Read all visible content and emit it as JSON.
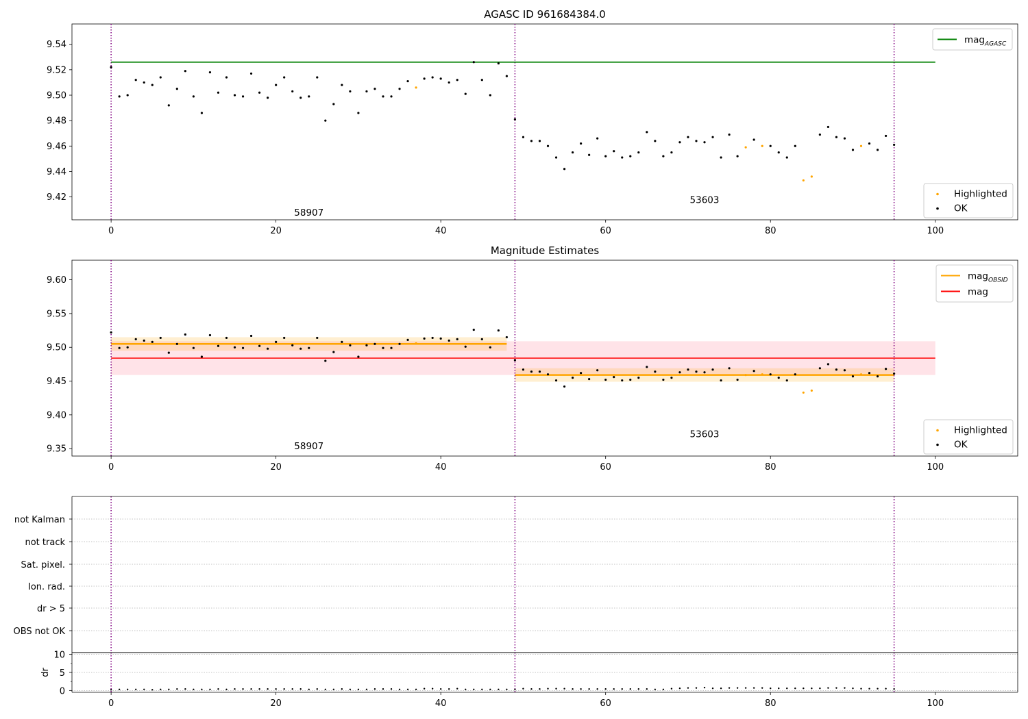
{
  "figure": {
    "title_top": "AGASC ID 961684384.0",
    "title_middle": "Magnitude Estimates"
  },
  "colors": {
    "agasc_line": "#008000",
    "obsid_line": "#ffa500",
    "mag_line": "#ff0000",
    "mag_band": "#ffc0cb",
    "obsid_band": "#ffa500",
    "boundary": "#800080",
    "ok_points": "#000000",
    "highlighted_points": "#ffa500",
    "grid": "#b0b0b0"
  },
  "chart_data": [
    {
      "type": "scatter",
      "panel": "top",
      "title": "AGASC ID 961684384.0",
      "xlim": [
        -4.75,
        110
      ],
      "ylim": [
        9.402,
        9.556
      ],
      "xticks": [
        0,
        20,
        40,
        60,
        80,
        100
      ],
      "yticks": [
        9.42,
        9.44,
        9.46,
        9.48,
        9.5,
        9.52,
        9.54
      ],
      "ytick_labels": [
        "9.42",
        "9.44",
        "9.46",
        "9.48",
        "9.50",
        "9.52",
        "9.54"
      ],
      "obs_boundaries": [
        0,
        49,
        95
      ],
      "obs_labels": [
        {
          "text": "58907",
          "x": 24,
          "y": 9.408
        },
        {
          "text": "53603",
          "x": 72,
          "y": 9.418
        }
      ],
      "lines": [
        {
          "name": "mag",
          "name_sub": "AGASC",
          "value": 9.526,
          "x": [
            0,
            100
          ]
        }
      ],
      "legend_lines": [
        {
          "name": "mag",
          "name_sub": "AGASC",
          "color": "#008000"
        }
      ],
      "legend_points": [
        {
          "name": "Highlighted",
          "color": "#ffa500"
        },
        {
          "name": "OK",
          "color": "#000000"
        }
      ]
    },
    {
      "type": "scatter",
      "panel": "middle",
      "title": "Magnitude Estimates",
      "xlim": [
        -4.75,
        110
      ],
      "ylim": [
        9.339,
        9.629
      ],
      "xticks": [
        0,
        20,
        40,
        60,
        80,
        100
      ],
      "yticks": [
        9.35,
        9.4,
        9.45,
        9.5,
        9.55,
        9.6
      ],
      "ytick_labels": [
        "9.35",
        "9.40",
        "9.45",
        "9.50",
        "9.55",
        "9.60"
      ],
      "obs_boundaries": [
        0,
        49,
        95
      ],
      "obs_labels": [
        {
          "text": "58907",
          "x": 24,
          "y": 9.354
        },
        {
          "text": "53603",
          "x": 72,
          "y": 9.372
        }
      ],
      "mag": {
        "value": 9.484,
        "err": 0.025,
        "x": [
          0,
          100
        ]
      },
      "obsid_segments": [
        {
          "x": [
            0,
            48
          ],
          "value": 9.505,
          "err": 0.01
        },
        {
          "x": [
            49,
            95
          ],
          "value": 9.459,
          "err": 0.01
        }
      ],
      "legend_lines": [
        {
          "name": "mag",
          "name_sub": "OBSID",
          "color": "#ffa500"
        },
        {
          "name": "mag",
          "name_sub": "",
          "color": "#ff0000"
        }
      ],
      "legend_points": [
        {
          "name": "Highlighted",
          "color": "#ffa500"
        },
        {
          "name": "OK",
          "color": "#000000"
        }
      ]
    },
    {
      "type": "scatter",
      "panel": "flags",
      "xlim": [
        -4.75,
        110
      ],
      "categories": [
        "OBS not OK",
        "dr > 5",
        "Ion. rad.",
        "Sat. pixel.",
        "not track",
        "not Kalman"
      ],
      "flags_set": [],
      "obs_boundaries": [
        0,
        49,
        95
      ]
    },
    {
      "type": "scatter",
      "panel": "dr",
      "xlim": [
        -4.75,
        110
      ],
      "ylim": [
        -0.5,
        10.5
      ],
      "yticks": [
        0,
        5,
        10
      ],
      "ytick_labels": [
        "0",
        "5",
        "10"
      ],
      "ylabel": "dr",
      "xticks": [
        0,
        20,
        40,
        60,
        80,
        100
      ],
      "obs_boundaries": [
        0,
        49,
        95
      ]
    }
  ],
  "points": {
    "x": [
      0,
      1,
      2,
      3,
      4,
      5,
      6,
      7,
      8,
      9,
      10,
      11,
      12,
      13,
      14,
      15,
      16,
      17,
      18,
      19,
      20,
      21,
      22,
      23,
      24,
      25,
      26,
      27,
      28,
      29,
      30,
      31,
      32,
      33,
      34,
      35,
      36,
      37,
      38,
      39,
      40,
      41,
      42,
      43,
      44,
      45,
      46,
      47,
      48,
      49,
      50,
      51,
      52,
      53,
      54,
      55,
      56,
      57,
      58,
      59,
      60,
      61,
      62,
      63,
      64,
      65,
      66,
      67,
      68,
      69,
      70,
      71,
      72,
      73,
      74,
      75,
      76,
      77,
      78,
      79,
      80,
      81,
      82,
      83,
      84,
      85,
      86,
      87,
      88,
      89,
      90,
      91,
      92,
      93,
      94,
      95
    ],
    "mag": [
      9.522,
      9.499,
      9.5,
      9.512,
      9.51,
      9.508,
      9.514,
      9.492,
      9.505,
      9.519,
      9.499,
      9.486,
      9.518,
      9.502,
      9.514,
      9.5,
      9.499,
      9.517,
      9.502,
      9.498,
      9.508,
      9.514,
      9.503,
      9.498,
      9.499,
      9.514,
      9.48,
      9.493,
      9.508,
      9.503,
      9.486,
      9.503,
      9.505,
      9.499,
      9.499,
      9.505,
      9.511,
      9.506,
      9.513,
      9.514,
      9.513,
      9.51,
      9.512,
      9.501,
      9.526,
      9.512,
      9.5,
      9.525,
      9.515,
      9.481,
      9.467,
      9.464,
      9.464,
      9.46,
      9.451,
      9.442,
      9.455,
      9.462,
      9.453,
      9.466,
      9.452,
      9.456,
      9.451,
      9.452,
      9.455,
      9.471,
      9.464,
      9.452,
      9.455,
      9.463,
      9.467,
      9.464,
      9.463,
      9.467,
      9.451,
      9.469,
      9.452,
      9.459,
      9.465,
      9.46,
      9.46,
      9.455,
      9.451,
      9.46,
      9.433,
      9.436,
      9.469,
      9.475,
      9.467,
      9.466,
      9.457,
      9.46,
      9.462,
      9.457,
      9.468,
      9.461
    ],
    "highlighted": [
      false,
      false,
      false,
      false,
      false,
      false,
      false,
      false,
      false,
      false,
      false,
      false,
      false,
      false,
      false,
      false,
      false,
      false,
      false,
      false,
      false,
      false,
      false,
      false,
      false,
      false,
      false,
      false,
      false,
      false,
      false,
      false,
      false,
      false,
      false,
      false,
      false,
      true,
      false,
      false,
      false,
      false,
      false,
      false,
      false,
      false,
      false,
      false,
      false,
      false,
      false,
      false,
      false,
      false,
      false,
      false,
      false,
      false,
      false,
      false,
      false,
      false,
      false,
      false,
      false,
      false,
      false,
      false,
      false,
      false,
      false,
      false,
      false,
      false,
      false,
      false,
      false,
      true,
      false,
      true,
      false,
      false,
      false,
      false,
      true,
      true,
      false,
      false,
      false,
      false,
      false,
      true,
      false,
      false,
      false,
      false
    ],
    "dr": [
      0.2,
      0.3,
      0.3,
      0.3,
      0.3,
      0.2,
      0.3,
      0.3,
      0.4,
      0.4,
      0.3,
      0.3,
      0.3,
      0.4,
      0.3,
      0.4,
      0.4,
      0.4,
      0.4,
      0.4,
      0.4,
      0.4,
      0.4,
      0.4,
      0.3,
      0.4,
      0.3,
      0.3,
      0.4,
      0.3,
      0.3,
      0.3,
      0.4,
      0.4,
      0.4,
      0.3,
      0.3,
      0.3,
      0.5,
      0.5,
      0.4,
      0.4,
      0.5,
      0.3,
      0.3,
      0.3,
      0.3,
      0.3,
      0.3,
      0.3,
      0.5,
      0.4,
      0.4,
      0.5,
      0.5,
      0.5,
      0.4,
      0.4,
      0.4,
      0.4,
      0.4,
      0.4,
      0.4,
      0.4,
      0.4,
      0.4,
      0.3,
      0.3,
      0.5,
      0.6,
      0.7,
      0.7,
      0.8,
      0.6,
      0.6,
      0.7,
      0.7,
      0.7,
      0.7,
      0.7,
      0.6,
      0.6,
      0.6,
      0.6,
      0.6,
      0.6,
      0.6,
      0.7,
      0.7,
      0.7,
      0.6,
      0.5,
      0.5,
      0.5,
      0.5,
      0.4
    ]
  }
}
